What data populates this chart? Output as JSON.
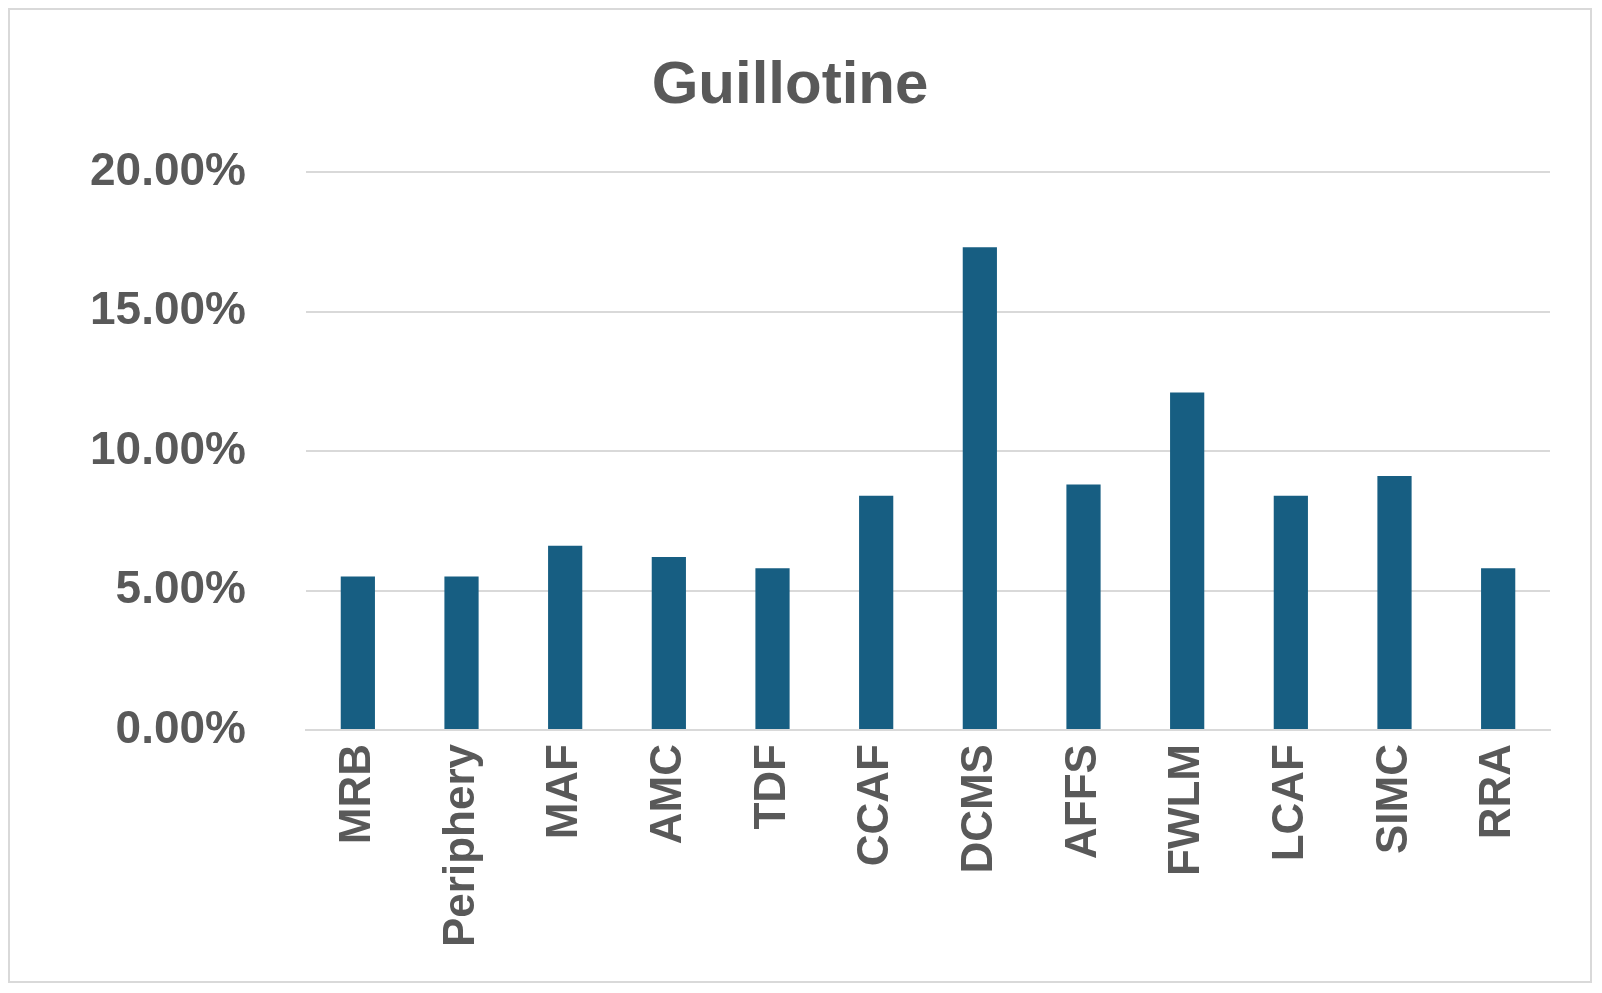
{
  "chart_data": {
    "type": "bar",
    "title": "Guillotine",
    "categories": [
      "MRB",
      "Periphery",
      "MAF",
      "AMC",
      "TDF",
      "CCAF",
      "DCMS",
      "AFFS",
      "FWLM",
      "LCAF",
      "SIMC",
      "RRA"
    ],
    "values": [
      5.5,
      5.5,
      6.6,
      6.2,
      5.8,
      8.4,
      17.3,
      8.8,
      12.1,
      8.4,
      9.1,
      5.8
    ],
    "color": "#175e82",
    "ylim": [
      0,
      20
    ],
    "yticks": [
      {
        "value": 0,
        "label": "0.00%"
      },
      {
        "value": 5,
        "label": "5.00%"
      },
      {
        "value": 10,
        "label": "10.00%"
      },
      {
        "value": 15,
        "label": "15.00%"
      },
      {
        "value": 20,
        "label": "20.00%"
      }
    ],
    "grid": "y",
    "legend": false
  }
}
